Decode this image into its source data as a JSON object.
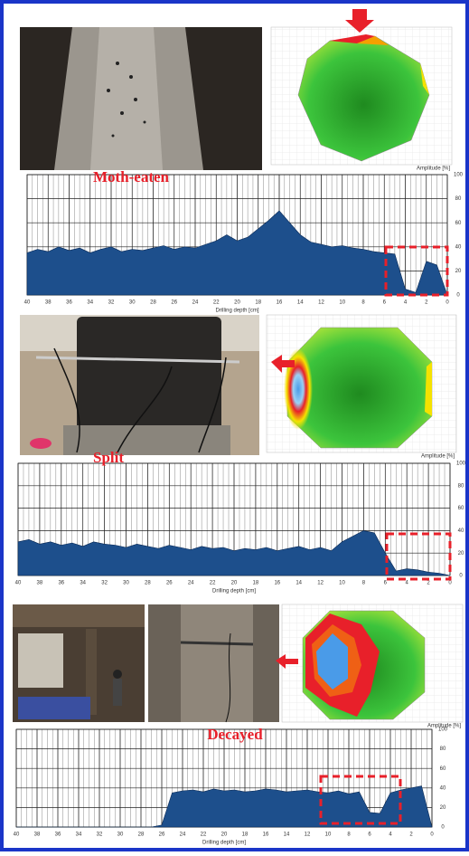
{
  "chart_data": [
    {
      "type": "area",
      "title": "Moth-eaten",
      "x_label": "Drilling depth [cm]",
      "color": "#1d4f8c",
      "x": [
        40,
        39,
        38,
        37,
        36,
        35,
        34,
        33,
        32,
        31,
        30,
        29,
        28,
        27,
        26,
        25,
        24,
        23,
        22,
        21,
        20,
        19,
        18,
        17,
        16,
        15,
        14,
        13,
        12,
        11,
        10,
        9,
        8,
        7,
        6,
        5,
        4,
        3,
        2,
        1,
        0
      ],
      "values": [
        35,
        38,
        36,
        40,
        37,
        39,
        35,
        38,
        40,
        36,
        38,
        37,
        39,
        41,
        38,
        40,
        39,
        42,
        45,
        50,
        45,
        48,
        55,
        62,
        70,
        60,
        50,
        44,
        42,
        40,
        41,
        39,
        38,
        36,
        35,
        34,
        5,
        2,
        28,
        25,
        0
      ],
      "xlim": [
        40,
        0
      ],
      "ylim": [
        0,
        100
      ],
      "xticks": [
        40,
        38,
        36,
        34,
        32,
        30,
        28,
        26,
        24,
        22,
        20,
        18,
        16,
        14,
        12,
        10,
        8,
        6,
        4,
        2,
        0
      ],
      "yticks": [
        0,
        20,
        40,
        60,
        80,
        100
      ],
      "grid": true
    },
    {
      "type": "area",
      "title": "Split",
      "x_label": "Drilling depth [cm]",
      "color": "#1d4f8c",
      "x": [
        40,
        39,
        38,
        37,
        36,
        35,
        34,
        33,
        32,
        31,
        30,
        29,
        28,
        27,
        26,
        25,
        24,
        23,
        22,
        21,
        20,
        19,
        18,
        17,
        16,
        15,
        14,
        13,
        12,
        11,
        10,
        9,
        8,
        7,
        6,
        5,
        4,
        3,
        2,
        1,
        0
      ],
      "values": [
        30,
        32,
        28,
        30,
        27,
        29,
        26,
        30,
        28,
        27,
        25,
        28,
        26,
        24,
        27,
        25,
        23,
        26,
        24,
        25,
        22,
        24,
        23,
        25,
        22,
        24,
        26,
        23,
        25,
        22,
        30,
        35,
        40,
        38,
        20,
        4,
        6,
        5,
        3,
        2,
        0
      ],
      "xlim": [
        40,
        0
      ],
      "ylim": [
        0,
        100
      ],
      "xticks": [
        40,
        38,
        36,
        34,
        32,
        30,
        28,
        26,
        24,
        22,
        20,
        18,
        16,
        14,
        12,
        10,
        8,
        6,
        4,
        2,
        0
      ],
      "yticks": [
        0,
        20,
        40,
        60,
        80,
        100
      ],
      "grid": true
    },
    {
      "type": "area",
      "title": "Decayed",
      "x_label": "Drilling depth [cm]",
      "color": "#1d4f8c",
      "x": [
        40,
        39,
        38,
        37,
        36,
        35,
        34,
        33,
        32,
        31,
        30,
        29,
        28,
        27,
        26,
        25,
        24,
        23,
        22,
        21,
        20,
        19,
        18,
        17,
        16,
        15,
        14,
        13,
        12,
        11,
        10,
        9,
        8,
        7,
        6,
        5,
        4,
        3,
        2,
        1,
        0
      ],
      "values": [
        0,
        0,
        0,
        0,
        0,
        0,
        0,
        0,
        0,
        0,
        0,
        0,
        0,
        0,
        2,
        35,
        37,
        38,
        36,
        39,
        37,
        38,
        36,
        37,
        39,
        38,
        36,
        37,
        38,
        36,
        35,
        37,
        34,
        36,
        15,
        14,
        35,
        38,
        40,
        42,
        0
      ],
      "xlim": [
        40,
        0
      ],
      "ylim": [
        0,
        100
      ],
      "xticks": [
        40,
        38,
        36,
        34,
        32,
        30,
        28,
        26,
        24,
        22,
        20,
        18,
        16,
        14,
        12,
        10,
        8,
        6,
        4,
        2,
        0
      ],
      "yticks": [
        0,
        20,
        40,
        60,
        80,
        100
      ],
      "grid": true
    }
  ],
  "tomograms": [
    {
      "legend": "Amplitude [%]"
    },
    {
      "legend": "Amplitude [%]"
    },
    {
      "legend": "Amplitude [%]"
    }
  ]
}
